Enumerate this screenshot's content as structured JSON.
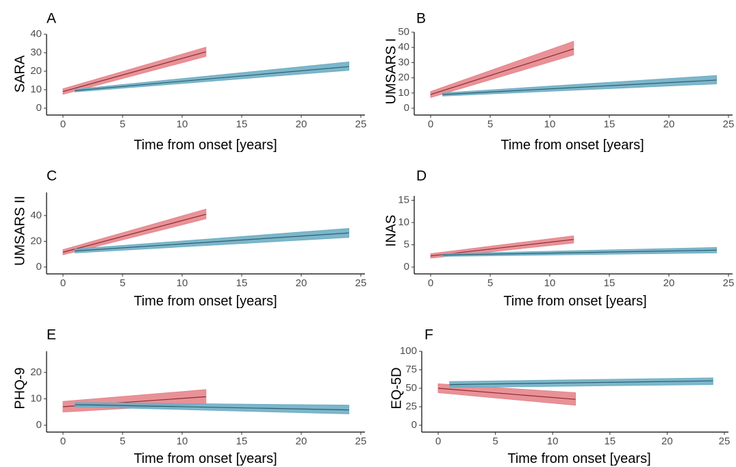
{
  "colors": {
    "group1_band": "#e6868c",
    "group1_line": "#8b2a32",
    "group2_band": "#6faec4",
    "group2_line": "#2c5f73"
  },
  "chart_data": [
    {
      "type": "line",
      "panel": "A",
      "ylabel": "SARA",
      "xlabel": "Time from onset [years]",
      "xlim": [
        0,
        25
      ],
      "ylim": [
        0,
        40
      ],
      "xticks": [
        0,
        5,
        10,
        15,
        20,
        25
      ],
      "yticks": [
        0,
        10,
        20,
        30,
        40
      ],
      "series": [
        {
          "x": [
            0,
            12
          ],
          "y": [
            9,
            30.5
          ],
          "lower": [
            7.5,
            28
          ],
          "upper": [
            10.5,
            33
          ]
        },
        {
          "x": [
            1,
            24
          ],
          "y": [
            9.5,
            22.5
          ],
          "lower": [
            8.8,
            20.5
          ],
          "upper": [
            10.2,
            25
          ]
        }
      ]
    },
    {
      "type": "line",
      "panel": "B",
      "ylabel": "UMSARS I",
      "xlabel": "Time from onset [years]",
      "xlim": [
        0,
        25
      ],
      "ylim": [
        0,
        50
      ],
      "xticks": [
        0,
        5,
        10,
        15,
        20,
        25
      ],
      "yticks": [
        0,
        10,
        20,
        30,
        40,
        50
      ],
      "series": [
        {
          "x": [
            0,
            12
          ],
          "y": [
            9,
            39
          ],
          "lower": [
            7,
            35
          ],
          "upper": [
            11,
            44
          ]
        },
        {
          "x": [
            1,
            24
          ],
          "y": [
            9,
            18.5
          ],
          "lower": [
            8,
            16
          ],
          "upper": [
            10,
            21.5
          ]
        }
      ]
    },
    {
      "type": "line",
      "panel": "C",
      "ylabel": "UMSARS II",
      "xlabel": "Time from onset [years]",
      "xlim": [
        0,
        25
      ],
      "ylim": [
        0,
        58
      ],
      "xticks": [
        0,
        5,
        10,
        15,
        20,
        25
      ],
      "yticks": [
        0,
        20,
        40
      ],
      "series": [
        {
          "x": [
            0,
            12
          ],
          "y": [
            11.5,
            41
          ],
          "lower": [
            9.5,
            37.5
          ],
          "upper": [
            13.5,
            45
          ]
        },
        {
          "x": [
            1,
            24
          ],
          "y": [
            12.5,
            26.5
          ],
          "lower": [
            11,
            23
          ],
          "upper": [
            14,
            30
          ]
        }
      ]
    },
    {
      "type": "line",
      "panel": "D",
      "ylabel": "INAS",
      "xlabel": "Time from onset [years]",
      "xlim": [
        0,
        25
      ],
      "ylim": [
        0,
        16
      ],
      "xticks": [
        0,
        5,
        10,
        15,
        20,
        25
      ],
      "yticks": [
        0,
        5,
        10,
        15
      ],
      "series": [
        {
          "x": [
            0,
            12
          ],
          "y": [
            2.5,
            6.2
          ],
          "lower": [
            2,
            5.4
          ],
          "upper": [
            3,
            7
          ]
        },
        {
          "x": [
            1,
            24
          ],
          "y": [
            2.7,
            3.8
          ],
          "lower": [
            2.4,
            3.2
          ],
          "upper": [
            3,
            4.4
          ]
        }
      ]
    },
    {
      "type": "line",
      "panel": "E",
      "ylabel": "PHQ-9",
      "xlabel": "Time from onset [years]",
      "xlim": [
        0,
        25
      ],
      "ylim": [
        0,
        28
      ],
      "xticks": [
        0,
        5,
        10,
        15,
        20,
        25
      ],
      "yticks": [
        0,
        10,
        20
      ],
      "series": [
        {
          "x": [
            0,
            12
          ],
          "y": [
            7,
            10.8
          ],
          "lower": [
            5,
            8
          ],
          "upper": [
            9,
            13.5
          ]
        },
        {
          "x": [
            1,
            24
          ],
          "y": [
            7.8,
            5.8
          ],
          "lower": [
            7,
            4.3
          ],
          "upper": [
            8.6,
            7.6
          ]
        }
      ]
    },
    {
      "type": "line",
      "panel": "F",
      "ylabel": "EQ-5D",
      "xlabel": "Time from onset [years]",
      "xlim": [
        0,
        25
      ],
      "ylim": [
        0,
        100
      ],
      "xticks": [
        0,
        5,
        10,
        15,
        20,
        25
      ],
      "yticks": [
        0,
        25,
        50,
        75,
        100
      ],
      "series": [
        {
          "x": [
            0,
            12
          ],
          "y": [
            50,
            35
          ],
          "lower": [
            44,
            27
          ],
          "upper": [
            56,
            44
          ]
        },
        {
          "x": [
            1,
            24
          ],
          "y": [
            55,
            60
          ],
          "lower": [
            51,
            55
          ],
          "upper": [
            59,
            64
          ]
        }
      ]
    }
  ]
}
